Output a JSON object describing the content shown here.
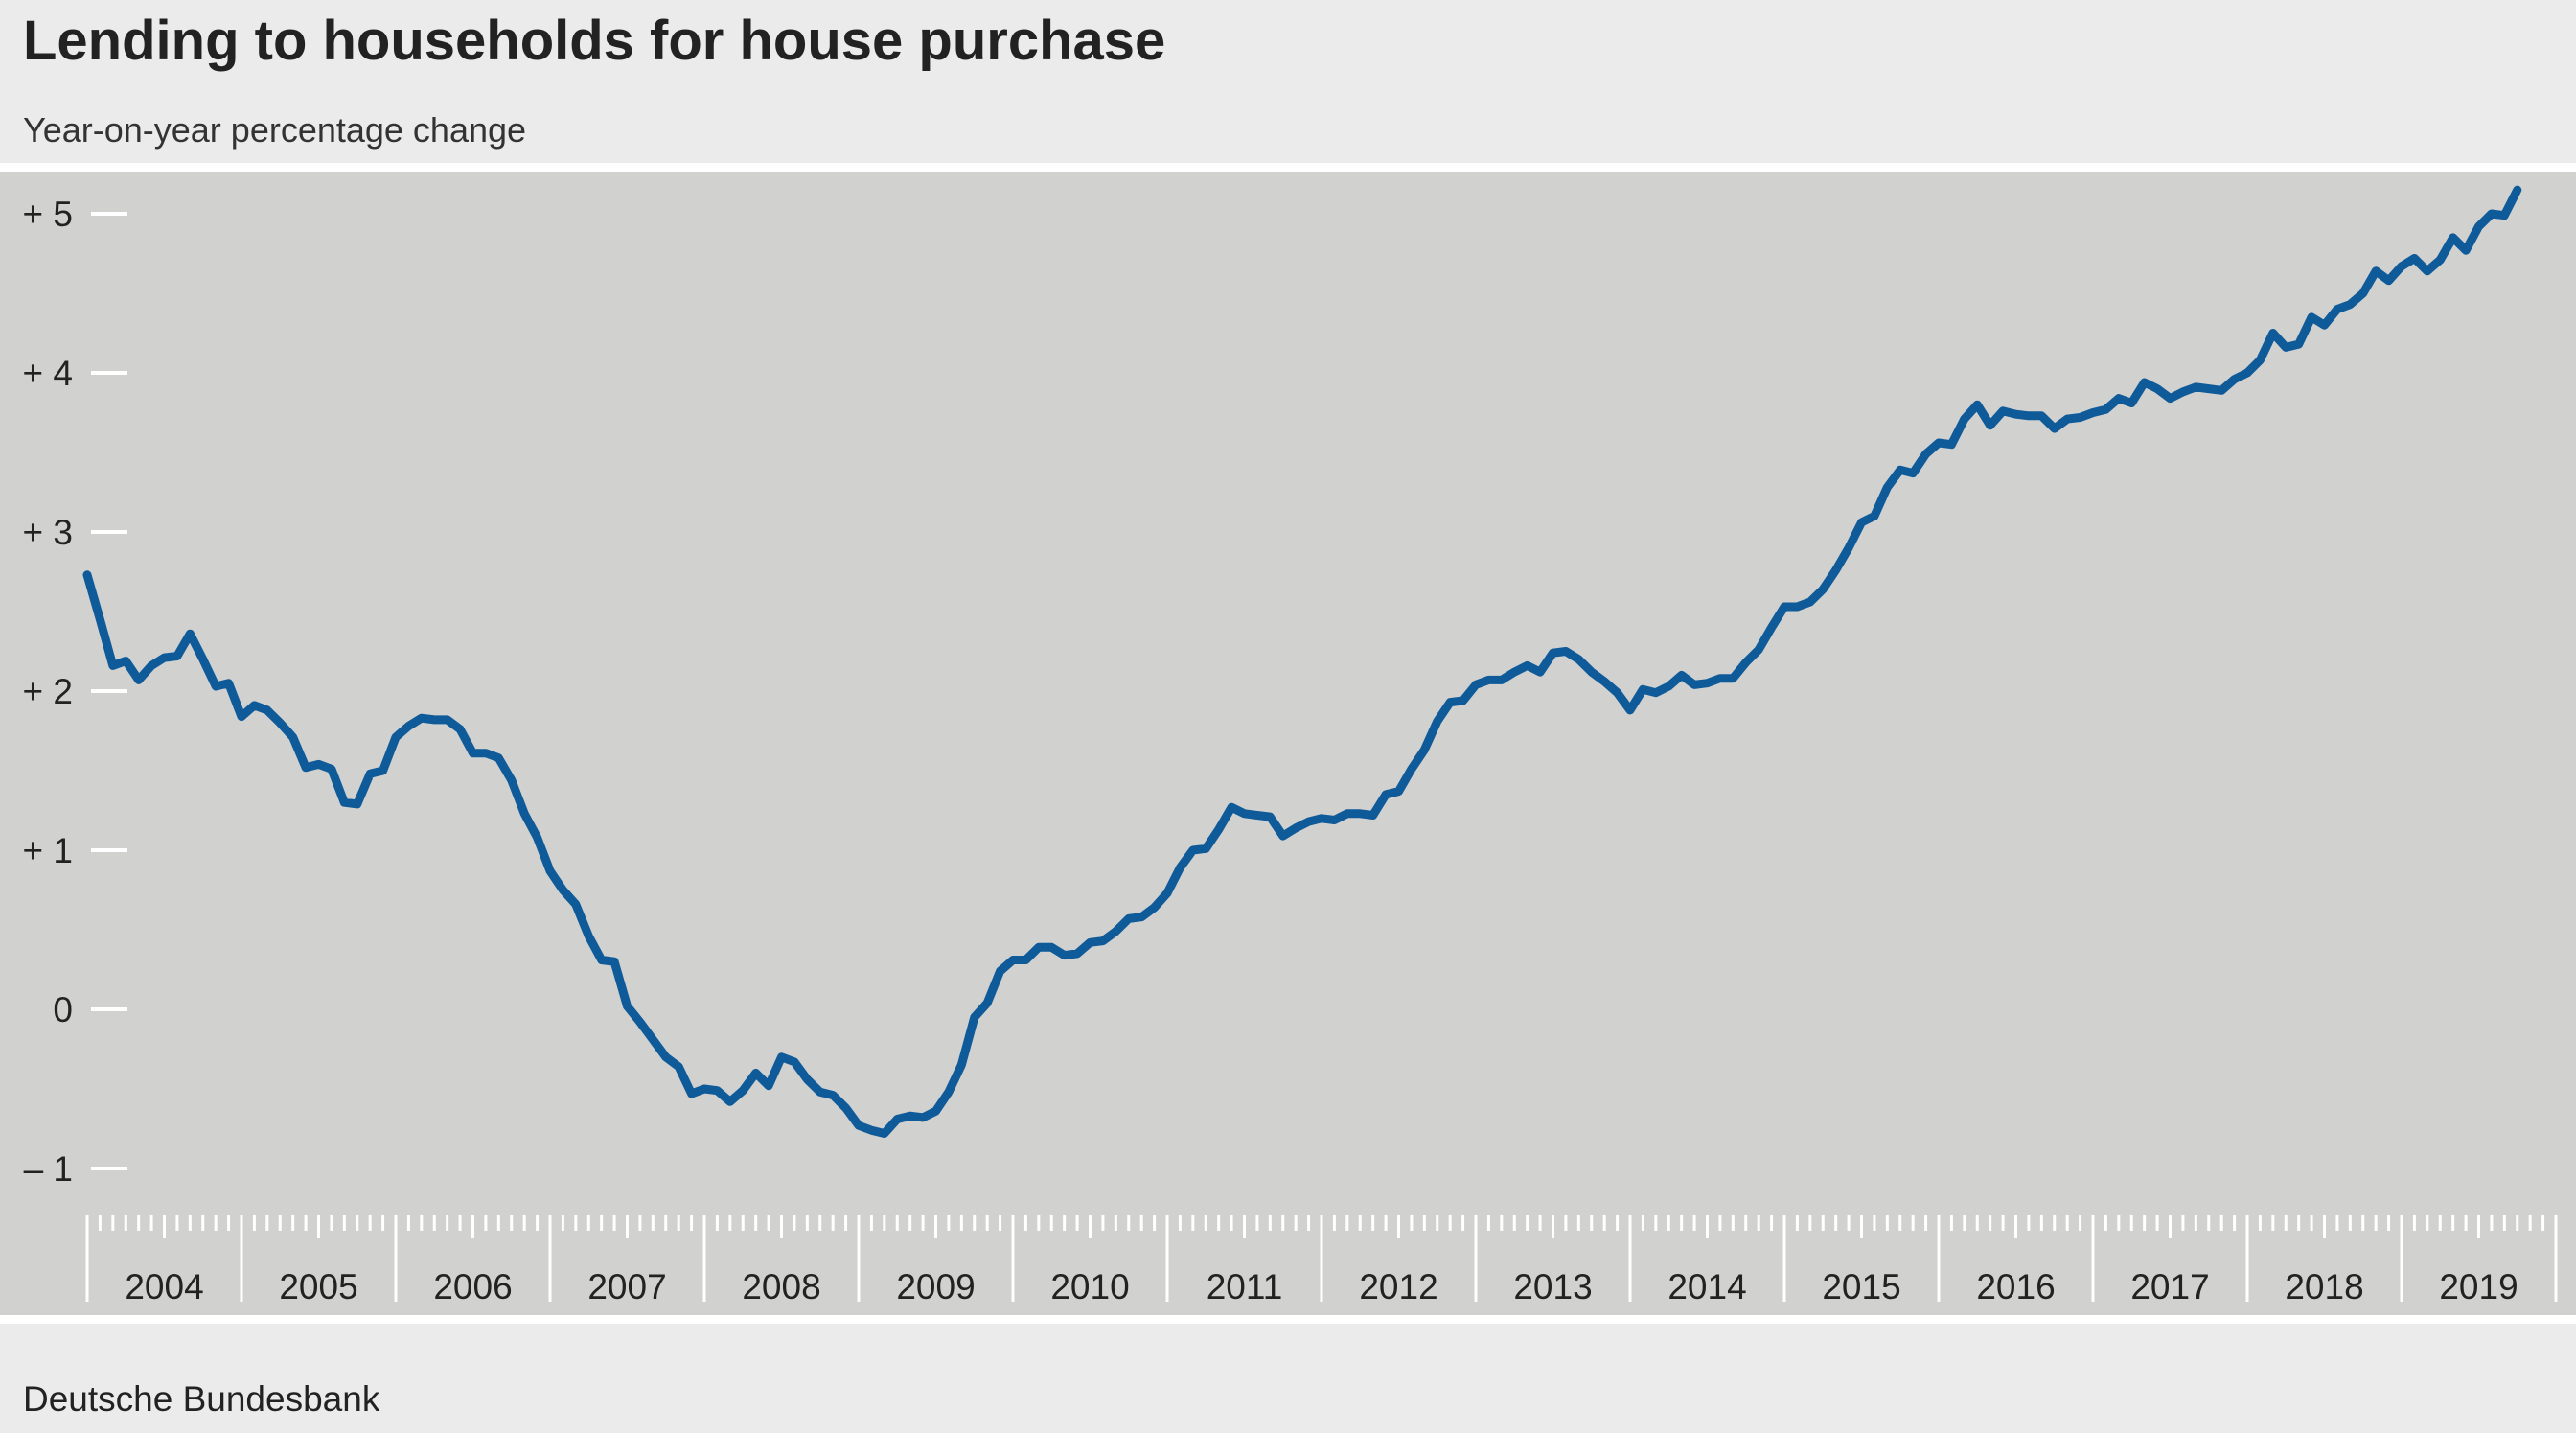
{
  "colors": {
    "background": "#ebebeb",
    "plot_background": "#d1d1d0",
    "line": "#0f5a99",
    "ticks": "#ffffff"
  },
  "chart_data": {
    "type": "line",
    "title": "Lending to households for house purchase",
    "subtitle": "Year-on-year percentage change",
    "source": "Deutsche Bundesbank",
    "ylim": [
      -1.3,
      5.2
    ],
    "y_ticks": [
      5,
      4,
      3,
      2,
      1,
      0,
      -1
    ],
    "y_tick_labels": [
      "+ 5",
      "+ 4",
      "+ 3",
      "+ 2",
      "+ 1",
      "0",
      "– 1"
    ],
    "x_tick_labels": [
      "2004",
      "2005",
      "2006",
      "2007",
      "2008",
      "2009",
      "2010",
      "2011",
      "2012",
      "2013",
      "2014",
      "2015",
      "2016",
      "2017",
      "2018",
      "2019"
    ],
    "x_start": "2004-01",
    "frequency": "monthly",
    "grid": false,
    "series": [
      {
        "values": [
          2.73,
          2.45,
          2.16,
          2.19,
          2.07,
          2.16,
          2.21,
          2.22,
          2.36,
          2.2,
          2.03,
          2.05,
          1.84,
          1.91,
          1.88,
          1.8,
          1.71,
          1.52,
          1.54,
          1.51,
          1.3,
          1.29,
          1.48,
          1.5,
          1.71,
          1.78,
          1.83,
          1.82,
          1.82,
          1.76,
          1.61,
          1.61,
          1.58,
          1.44,
          1.23,
          1.08,
          0.87,
          0.75,
          0.66,
          0.46,
          0.31,
          0.3,
          0.02,
          -0.08,
          -0.19,
          -0.3,
          -0.36,
          -0.53,
          -0.5,
          -0.51,
          -0.58,
          -0.51,
          -0.4,
          -0.48,
          -0.3,
          -0.33,
          -0.44,
          -0.52,
          -0.54,
          -0.62,
          -0.73,
          -0.76,
          -0.78,
          -0.69,
          -0.67,
          -0.68,
          -0.64,
          -0.52,
          -0.35,
          -0.05,
          0.04,
          0.24,
          0.31,
          0.31,
          0.39,
          0.39,
          0.34,
          0.35,
          0.42,
          0.43,
          0.49,
          0.57,
          0.58,
          0.64,
          0.73,
          0.89,
          1.0,
          1.01,
          1.13,
          1.27,
          1.23,
          1.22,
          1.21,
          1.09,
          1.14,
          1.18,
          1.2,
          1.19,
          1.23,
          1.23,
          1.22,
          1.35,
          1.37,
          1.51,
          1.63,
          1.81,
          1.93,
          1.94,
          2.04,
          2.07,
          2.07,
          2.12,
          2.16,
          2.12,
          2.24,
          2.25,
          2.2,
          2.12,
          2.06,
          1.99,
          1.88,
          2.01,
          1.99,
          2.03,
          2.1,
          2.04,
          2.05,
          2.08,
          2.08,
          2.18,
          2.26,
          2.4,
          2.53,
          2.53,
          2.56,
          2.64,
          2.76,
          2.9,
          3.06,
          3.1,
          3.28,
          3.39,
          3.37,
          3.49,
          3.56,
          3.55,
          3.71,
          3.8,
          3.67,
          3.76,
          3.74,
          3.73,
          3.73,
          3.65,
          3.71,
          3.72,
          3.75,
          3.77,
          3.84,
          3.81,
          3.94,
          3.9,
          3.84,
          3.88,
          3.91,
          3.9,
          3.89,
          3.96,
          4.0,
          4.08,
          4.25,
          4.16,
          4.18,
          4.35,
          4.3,
          4.4,
          4.43,
          4.5,
          4.64,
          4.58,
          4.67,
          4.72,
          4.64,
          4.71,
          4.85,
          4.77,
          4.92,
          5.0,
          4.99,
          5.15
        ]
      }
    ]
  }
}
